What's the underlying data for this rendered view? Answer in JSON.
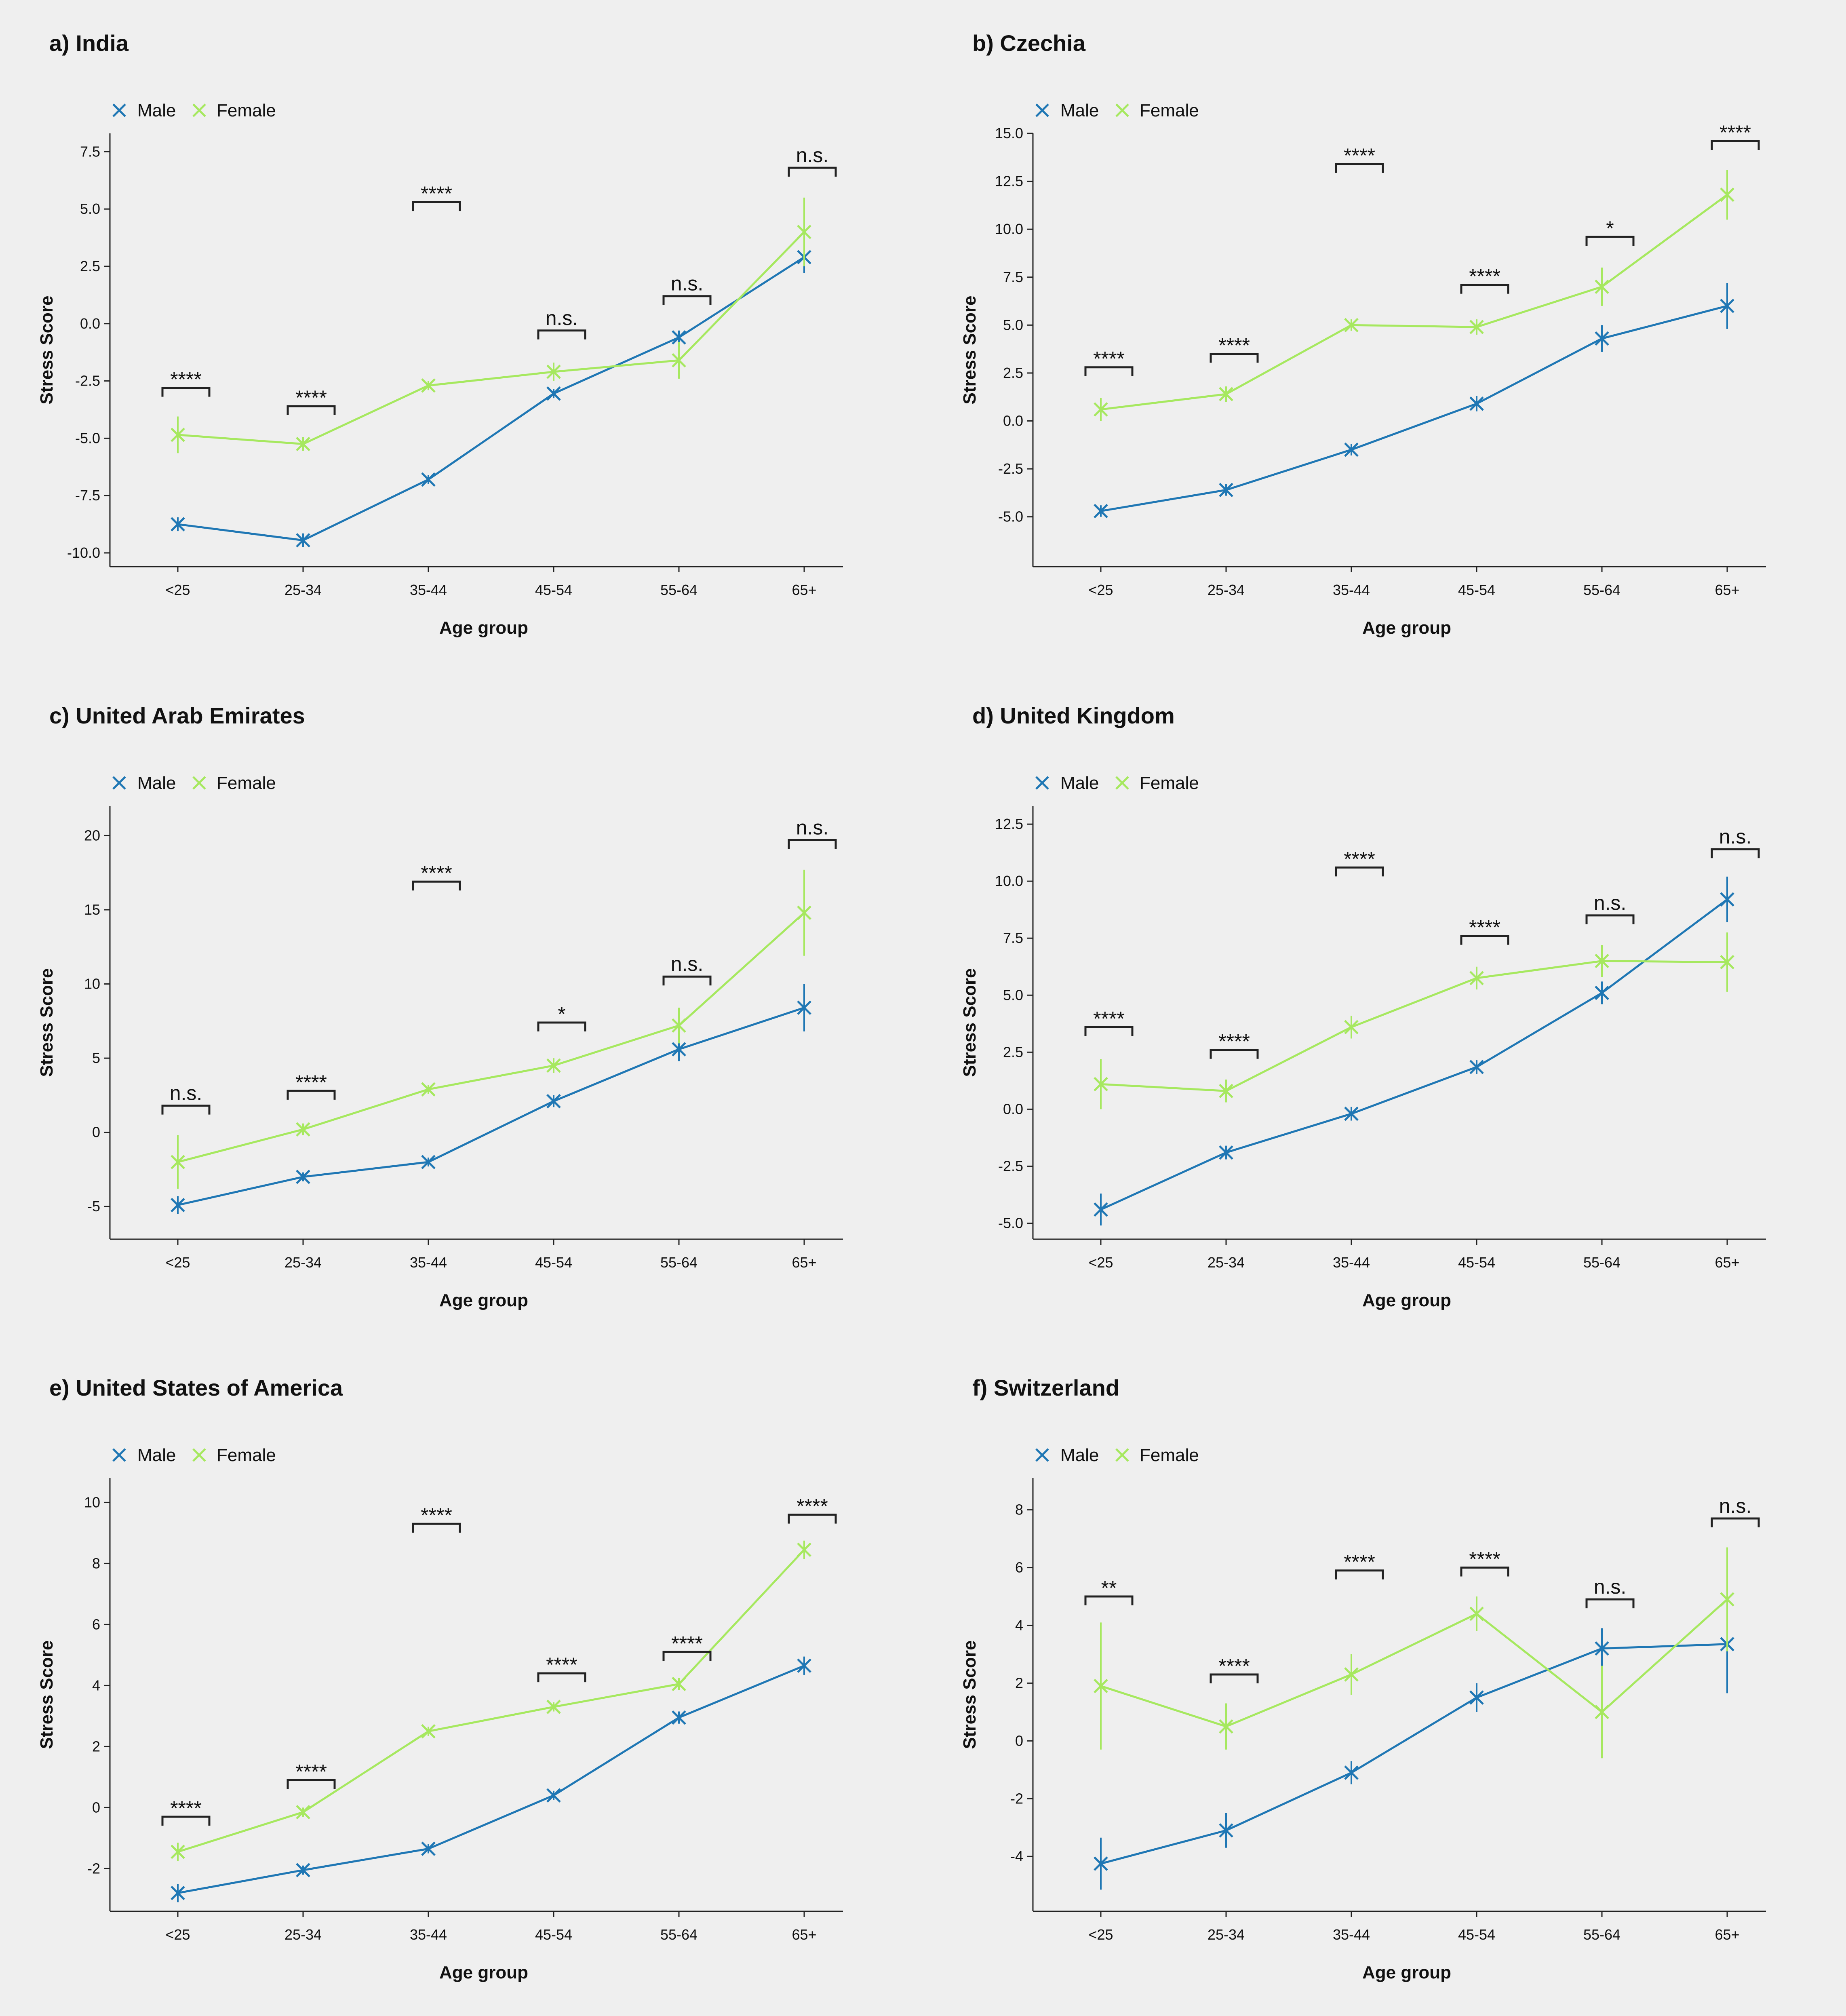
{
  "colors": {
    "male": "#1f77b4",
    "female": "#a6e85f",
    "background": "#efefef",
    "axis": "#222222"
  },
  "legend": {
    "male": "Male",
    "female": "Female"
  },
  "chart_data": [
    {
      "type": "line",
      "title": "a) India",
      "xlabel": "Age group",
      "ylabel": "Stress Score",
      "categories": [
        "<25",
        "25-34",
        "35-44",
        "45-54",
        "55-64",
        "65+"
      ],
      "ylim": [
        -10.6,
        8.3
      ],
      "yticks": [
        -10.0,
        -7.5,
        -5.0,
        -2.5,
        0.0,
        2.5,
        5.0,
        7.5
      ],
      "yticklabels": [
        "-10.0",
        "-7.5",
        "-5.0",
        "-2.5",
        "0.0",
        "2.5",
        "5.0",
        "7.5"
      ],
      "series": [
        {
          "name": "Male",
          "values": [
            -8.75,
            -9.45,
            -6.8,
            -3.05,
            -0.6,
            2.9
          ],
          "errors": [
            0.3,
            0.3,
            0.2,
            0.2,
            0.3,
            0.7
          ]
        },
        {
          "name": "Female",
          "values": [
            -4.85,
            -5.25,
            -2.7,
            -2.1,
            -1.6,
            4.0
          ],
          "errors": [
            0.8,
            0.3,
            0.2,
            0.4,
            0.8,
            1.5
          ]
        }
      ],
      "significance": [
        "****",
        "****",
        "****",
        "n.s.",
        "n.s.",
        "n.s."
      ],
      "sig_y": [
        -2.8,
        -3.6,
        5.3,
        -0.3,
        1.2,
        6.8
      ]
    },
    {
      "type": "line",
      "title": "b) Czechia",
      "xlabel": "Age group",
      "ylabel": "Stress Score",
      "categories": [
        "<25",
        "25-34",
        "35-44",
        "45-54",
        "55-64",
        "65+"
      ],
      "ylim": [
        -7.6,
        15.0
      ],
      "yticks": [
        -5.0,
        -2.5,
        0.0,
        2.5,
        5.0,
        7.5,
        10.0,
        12.5,
        15.0
      ],
      "yticklabels": [
        "-5.0",
        "-2.5",
        "0.0",
        "2.5",
        "5.0",
        "7.5",
        "10.0",
        "12.5",
        "15.0"
      ],
      "series": [
        {
          "name": "Male",
          "values": [
            -4.7,
            -3.6,
            -1.5,
            0.9,
            4.3,
            6.0
          ],
          "errors": [
            0.3,
            0.3,
            0.3,
            0.4,
            0.7,
            1.2
          ]
        },
        {
          "name": "Female",
          "values": [
            0.6,
            1.4,
            5.0,
            4.9,
            7.0,
            11.8
          ],
          "errors": [
            0.6,
            0.4,
            0.3,
            0.4,
            1.0,
            1.3
          ]
        }
      ],
      "significance": [
        "****",
        "****",
        "****",
        "****",
        "*",
        "****"
      ],
      "sig_y": [
        2.8,
        3.5,
        13.4,
        7.1,
        9.6,
        14.6
      ]
    },
    {
      "type": "line",
      "title": "c) United Arab Emirates",
      "xlabel": "Age group",
      "ylabel": "Stress Score",
      "categories": [
        "<25",
        "25-34",
        "35-44",
        "45-54",
        "55-64",
        "65+"
      ],
      "ylim": [
        -7.2,
        22.0
      ],
      "yticks": [
        -5,
        0,
        5,
        10,
        15,
        20
      ],
      "yticklabels": [
        "-5",
        "0",
        "5",
        "10",
        "15",
        "20"
      ],
      "series": [
        {
          "name": "Male",
          "values": [
            -4.9,
            -3.0,
            -2.0,
            2.1,
            5.6,
            8.4
          ],
          "errors": [
            0.6,
            0.3,
            0.3,
            0.4,
            0.8,
            1.6
          ]
        },
        {
          "name": "Female",
          "values": [
            -2.0,
            0.2,
            2.9,
            4.5,
            7.2,
            14.8
          ],
          "errors": [
            1.8,
            0.4,
            0.3,
            0.5,
            1.2,
            2.9
          ]
        }
      ],
      "significance": [
        "n.s.",
        "****",
        "****",
        "*",
        "n.s.",
        "n.s."
      ],
      "sig_y": [
        1.8,
        2.8,
        16.9,
        7.4,
        10.5,
        19.7
      ]
    },
    {
      "type": "line",
      "title": "d) United Kingdom",
      "xlabel": "Age group",
      "ylabel": "Stress Score",
      "categories": [
        "<25",
        "25-34",
        "35-44",
        "45-54",
        "55-64",
        "65+"
      ],
      "ylim": [
        -5.7,
        13.3
      ],
      "yticks": [
        -5.0,
        -2.5,
        0.0,
        2.5,
        5.0,
        7.5,
        10.0,
        12.5
      ],
      "yticklabels": [
        "-5.0",
        "-2.5",
        "0.0",
        "2.5",
        "5.0",
        "7.5",
        "10.0",
        "12.5"
      ],
      "series": [
        {
          "name": "Male",
          "values": [
            -4.4,
            -1.9,
            -0.2,
            1.85,
            5.1,
            9.2
          ],
          "errors": [
            0.7,
            0.3,
            0.3,
            0.3,
            0.5,
            1.0
          ]
        },
        {
          "name": "Female",
          "values": [
            1.1,
            0.8,
            3.6,
            5.75,
            6.5,
            6.45
          ],
          "errors": [
            1.1,
            0.5,
            0.5,
            0.5,
            0.7,
            1.3
          ]
        }
      ],
      "significance": [
        "****",
        "****",
        "****",
        "****",
        "n.s.",
        "n.s."
      ],
      "sig_y": [
        3.6,
        2.6,
        10.6,
        7.6,
        8.5,
        11.4
      ]
    },
    {
      "type": "line",
      "title": "e) United States of America",
      "xlabel": "Age group",
      "ylabel": "Stress Score",
      "categories": [
        "<25",
        "25-34",
        "35-44",
        "45-54",
        "55-64",
        "65+"
      ],
      "ylim": [
        -3.4,
        10.8
      ],
      "yticks": [
        -2,
        0,
        2,
        4,
        6,
        8,
        10
      ],
      "yticklabels": [
        "-2",
        "0",
        "2",
        "4",
        "6",
        "8",
        "10"
      ],
      "series": [
        {
          "name": "Male",
          "values": [
            -2.8,
            -2.05,
            -1.35,
            0.4,
            2.95,
            4.65
          ],
          "errors": [
            0.3,
            0.15,
            0.15,
            0.15,
            0.2,
            0.3
          ]
        },
        {
          "name": "Female",
          "values": [
            -1.45,
            -0.15,
            2.5,
            3.3,
            4.05,
            8.45
          ],
          "errors": [
            0.3,
            0.15,
            0.15,
            0.15,
            0.2,
            0.3
          ]
        }
      ],
      "significance": [
        "****",
        "****",
        "****",
        "****",
        "****",
        "****"
      ],
      "sig_y": [
        -0.3,
        0.9,
        9.3,
        4.4,
        5.1,
        9.6
      ]
    },
    {
      "type": "line",
      "title": "f) Switzerland",
      "xlabel": "Age group",
      "ylabel": "Stress Score",
      "categories": [
        "<25",
        "25-34",
        "35-44",
        "45-54",
        "55-64",
        "65+"
      ],
      "ylim": [
        -5.9,
        9.1
      ],
      "yticks": [
        -4,
        -2,
        0,
        2,
        4,
        6,
        8
      ],
      "yticklabels": [
        "-4",
        "-2",
        "0",
        "2",
        "4",
        "6",
        "8"
      ],
      "series": [
        {
          "name": "Male",
          "values": [
            -4.25,
            -3.1,
            -1.1,
            1.5,
            3.2,
            3.35
          ],
          "errors": [
            0.9,
            0.6,
            0.4,
            0.5,
            0.7,
            1.7
          ]
        },
        {
          "name": "Female",
          "values": [
            1.9,
            0.5,
            2.3,
            4.4,
            1.0,
            4.9
          ],
          "errors": [
            2.2,
            0.8,
            0.7,
            0.6,
            1.6,
            1.8
          ]
        }
      ],
      "significance": [
        "**",
        "****",
        "****",
        "****",
        "n.s.",
        "n.s."
      ],
      "sig_y": [
        5.0,
        2.3,
        5.9,
        6.0,
        4.9,
        7.7
      ]
    }
  ]
}
